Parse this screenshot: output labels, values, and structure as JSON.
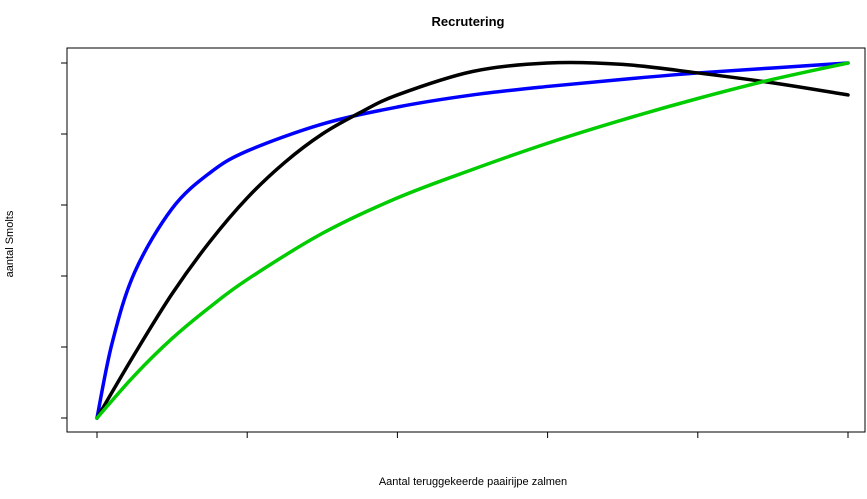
{
  "chart_data": {
    "type": "line",
    "title": "Recrutering",
    "xlabel": "Aantal teruggekeerde paairijpe zalmen",
    "ylabel": "aantal Smolts",
    "xlim": [
      0,
      5
    ],
    "ylim": [
      0,
      5
    ],
    "x_ticks": [
      0,
      1,
      2,
      3,
      4,
      5
    ],
    "y_ticks": [
      0,
      1,
      2,
      3,
      4,
      5
    ],
    "tick_labels_shown": false,
    "grid": false,
    "legend": "none",
    "series": [
      {
        "color": "#0000ff",
        "x": [
          0,
          0.1,
          0.25,
          0.5,
          0.75,
          1.0,
          1.5,
          2.0,
          2.5,
          3.0,
          3.5,
          4.0,
          4.5,
          5.0
        ],
        "y": [
          0,
          1.05,
          2.05,
          2.95,
          3.45,
          3.76,
          4.14,
          4.38,
          4.55,
          4.67,
          4.77,
          4.86,
          4.93,
          5.0
        ]
      },
      {
        "color": "#000000",
        "x": [
          0,
          0.25,
          0.5,
          0.75,
          1.0,
          1.25,
          1.5,
          1.75,
          2.0,
          2.5,
          3.0,
          3.5,
          4.0,
          4.5,
          5.0
        ],
        "y": [
          0,
          0.9,
          1.75,
          2.48,
          3.1,
          3.6,
          4.0,
          4.3,
          4.55,
          4.88,
          5.0,
          4.98,
          4.86,
          4.72,
          4.55
        ]
      },
      {
        "color": "#00cc00",
        "x": [
          0,
          0.25,
          0.5,
          0.75,
          1.0,
          1.5,
          2.0,
          2.5,
          3.0,
          3.5,
          4.0,
          4.5,
          5.0
        ],
        "y": [
          0,
          0.6,
          1.12,
          1.56,
          1.95,
          2.6,
          3.1,
          3.5,
          3.87,
          4.2,
          4.5,
          4.77,
          5.0
        ]
      }
    ]
  }
}
